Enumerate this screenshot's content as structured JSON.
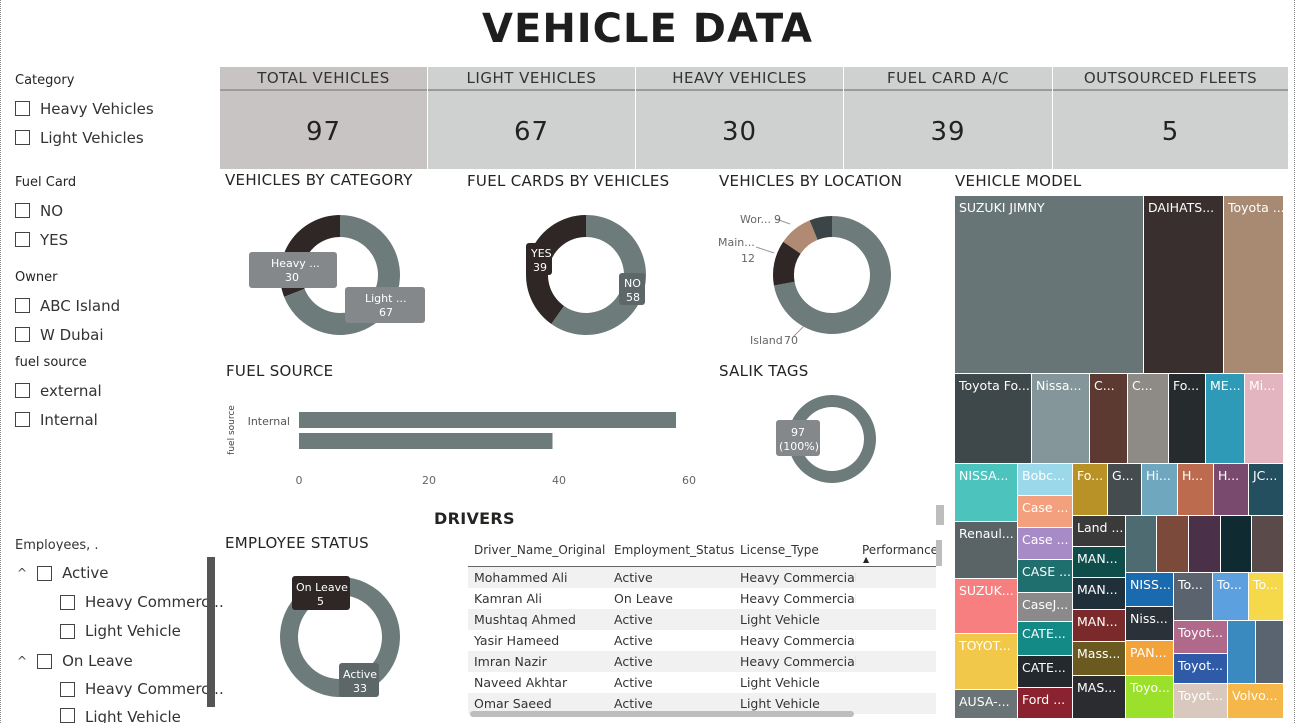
{
  "title": "VEHICLE DATA",
  "slicers": {
    "category": {
      "title": "Category",
      "items": [
        "Heavy Vehicles",
        "Light Vehicles"
      ]
    },
    "fuel_card": {
      "title": "Fuel Card",
      "items": [
        "NO",
        "YES"
      ]
    },
    "owner": {
      "title": "Owner",
      "items": [
        "ABC Island",
        "W Dubai"
      ]
    },
    "fuel_source": {
      "title": "fuel source",
      "items": [
        "external",
        "Internal"
      ]
    }
  },
  "kpis": [
    {
      "label": "TOTAL VEHICLES",
      "value": "97"
    },
    {
      "label": "LIGHT VEHICLES",
      "value": "67"
    },
    {
      "label": "HEAVY VEHICLES",
      "value": "30"
    },
    {
      "label": "FUEL CARD A/C",
      "value": "39"
    },
    {
      "label": "OUTSOURCED FLEETS",
      "value": "5"
    }
  ],
  "visual_titles": {
    "by_category": "VEHICLES BY CATEGORY",
    "fuel_cards": "FUEL CARDS BY VEHICLES",
    "by_location": "VEHICLES BY LOCATION",
    "vehicle_model": "VEHICLE MODEL",
    "fuel_source": "FUEL SOURCE",
    "salik": "SALIK TAGS",
    "employee_status": "EMPLOYEE STATUS",
    "drivers": "DRIVERS"
  },
  "chart_data": [
    {
      "type": "pie",
      "chart": "vehicles-by-category",
      "slices": [
        {
          "label": "Heavy ...",
          "value": 30,
          "color": "#2f2626"
        },
        {
          "label": "Light ...",
          "value": 67,
          "color": "#6e7b7b"
        }
      ]
    },
    {
      "type": "pie",
      "chart": "fuel-cards-by-vehicles",
      "slices": [
        {
          "label": "YES",
          "value": 39,
          "color": "#2f2626"
        },
        {
          "label": "NO",
          "value": 58,
          "color": "#6e7b7b"
        }
      ]
    },
    {
      "type": "pie",
      "chart": "vehicles-by-location",
      "slices": [
        {
          "label": "Island",
          "value": 70,
          "color": "#6e7b7b"
        },
        {
          "label": "Main...",
          "value": 12,
          "color": "#2f2626"
        },
        {
          "label": "Wor...",
          "value": 9,
          "color": "#b08a72"
        },
        {
          "label": "",
          "value": 6,
          "color": "#3b4547"
        }
      ]
    },
    {
      "type": "bar",
      "chart": "fuel-source",
      "orientation": "horizontal",
      "categories": [
        "Internal",
        ""
      ],
      "values": [
        58,
        39
      ],
      "ylabel": "fuel source",
      "xticks": [
        0,
        20,
        40,
        60
      ],
      "xlim": [
        0,
        60
      ]
    },
    {
      "type": "pie",
      "chart": "salik-tags",
      "slices": [
        {
          "label": "97",
          "sublabel": "(100%)",
          "value": 97,
          "color": "#6e7b7b"
        }
      ]
    },
    {
      "type": "pie",
      "chart": "employee-status",
      "slices": [
        {
          "label": "On Leave",
          "value": 5,
          "color": "#2f2626"
        },
        {
          "label": "Active",
          "value": 33,
          "color": "#6e7b7b"
        }
      ]
    }
  ],
  "employees_slicer": {
    "title": "Employees, .",
    "groups": [
      {
        "label": "Active",
        "children": [
          "Heavy Commerc...",
          "Light Vehicle"
        ]
      },
      {
        "label": "On Leave",
        "children": [
          "Heavy Commerc...",
          "Light Vehicle"
        ]
      }
    ]
  },
  "drivers_table": {
    "columns": [
      "Driver_Name_Original",
      "Employment_Status",
      "License_Type",
      "Performance"
    ],
    "rows": [
      [
        "Mohammed Ali",
        "Active",
        "Heavy Commercial",
        ""
      ],
      [
        "Kamran Ali",
        "On Leave",
        "Heavy Commercial",
        ""
      ],
      [
        "Mushtaq Ahmed",
        "Active",
        "Light Vehicle",
        ""
      ],
      [
        "Yasir Hameed",
        "Active",
        "Heavy Commercial",
        ""
      ],
      [
        "Imran Nazir",
        "Active",
        "Heavy Commercial",
        ""
      ],
      [
        "Naveed Akhtar",
        "Active",
        "Light Vehicle",
        ""
      ],
      [
        "Omar Saeed",
        "Active",
        "Light Vehicle",
        ""
      ]
    ]
  },
  "treemap": [
    {
      "label": "SUZUKI JIMNY",
      "color": "#687576"
    },
    {
      "label": "DAIHATS...",
      "color": "#3a2f2f"
    },
    {
      "label": "Toyota ...",
      "color": "#a88a72"
    },
    {
      "label": "Toyota Fo...",
      "color": "#3e4749"
    },
    {
      "label": "Nissa...",
      "color": "#84969a"
    },
    {
      "label": "C...",
      "color": "#5c3a32"
    },
    {
      "label": "C...",
      "color": "#8e8a85"
    },
    {
      "label": "Fo...",
      "color": "#262c2e"
    },
    {
      "label": "ME...",
      "color": "#2e9ab8"
    },
    {
      "label": "Mi...",
      "color": "#e2b5c0"
    },
    {
      "label": "NISSA...",
      "color": "#4cc4bd"
    },
    {
      "label": "Bobc...",
      "color": "#9ad8ea"
    },
    {
      "label": "Fo...",
      "color": "#b89227"
    },
    {
      "label": "G...",
      "color": "#444c50"
    },
    {
      "label": "Hi...",
      "color": "#6fa7bf"
    },
    {
      "label": "H...",
      "color": "#bd6b4f"
    },
    {
      "label": "H...",
      "color": "#7a4a6e"
    },
    {
      "label": "JC...",
      "color": "#234f5e"
    },
    {
      "label": "Case ...",
      "color": "#f3a07e"
    },
    {
      "label": "Land ...",
      "color": "#3a3a3a"
    },
    {
      "label": "Renaul...",
      "color": "#5a6466"
    },
    {
      "label": "Case ...",
      "color": "#a78bc7"
    },
    {
      "label": "MAN...",
      "color": "#0f4d4a"
    },
    {
      "label": "SUZUK...",
      "color": "#f77f7f"
    },
    {
      "label": "CASE ...",
      "color": "#1f6f6f"
    },
    {
      "label": "MAN...",
      "color": "#20303a"
    },
    {
      "label": "CaseJ...",
      "color": "#8a8a8a"
    },
    {
      "label": "MAN...",
      "color": "#7a2a2a"
    },
    {
      "label": "NISS...",
      "color": "#1a6ab0"
    },
    {
      "label": "To...",
      "color": "#5b646e"
    },
    {
      "label": "To...",
      "color": "#5ca0e0"
    },
    {
      "label": "To...",
      "color": "#f5d94a"
    },
    {
      "label": "TOYOT...",
      "color": "#f2c84b"
    },
    {
      "label": "CATE...",
      "color": "#138a86"
    },
    {
      "label": "Niss...",
      "color": "#2b3138"
    },
    {
      "label": "Toyot...",
      "color": "#b0698a"
    },
    {
      "label": "CATE...",
      "color": "#24292d"
    },
    {
      "label": "Mass...",
      "color": "#6b5a1f"
    },
    {
      "label": "PAN...",
      "color": "#f2a33a"
    },
    {
      "label": "Toyot...",
      "color": "#2e5aa8"
    },
    {
      "label": "AUSA-...",
      "color": "#6a7375"
    },
    {
      "label": "Ford ...",
      "color": "#8a2230"
    },
    {
      "label": "MAS...",
      "color": "#2a2c30"
    },
    {
      "label": "Toyo...",
      "color": "#9be02a"
    },
    {
      "label": "Toyot...",
      "color": "#d8c8bd"
    },
    {
      "label": "Volvo...",
      "color": "#f5b64a"
    }
  ]
}
